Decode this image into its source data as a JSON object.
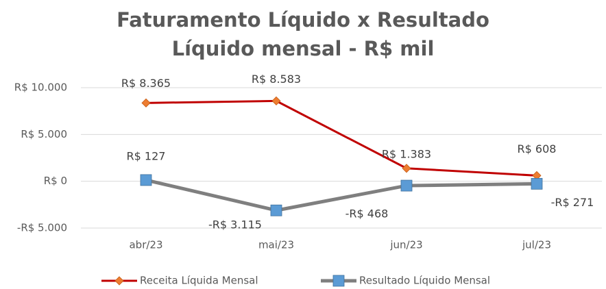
{
  "chart_data": {
    "type": "line",
    "title": "Faturamento Líquido x Resultado Líquido mensal - R$ mil",
    "categories": [
      "abr/23",
      "mai/23",
      "jun/23",
      "jul/23"
    ],
    "series": [
      {
        "name": "Receita Líquida Mensal",
        "color": "#c00000",
        "marker_color": "#ed7d31",
        "marker": "diamond",
        "values": [
          8365,
          8583,
          1383,
          608
        ],
        "value_labels": [
          "R$ 8.365",
          "R$ 8.583",
          "R$ 1.383",
          "R$ 608"
        ]
      },
      {
        "name": "Resultado Líquido Mensal",
        "color": "#7f7f7f",
        "marker_color": "#5b9bd5",
        "marker": "square",
        "values": [
          127,
          -3115,
          -468,
          -271
        ],
        "value_labels": [
          "R$ 127",
          "-R$ 3.115",
          "-R$ 468",
          "-R$ 271"
        ]
      }
    ],
    "ylim": [
      -5000,
      10000
    ],
    "yticks": [
      {
        "value": -5000,
        "label": "-R$ 5.000"
      },
      {
        "value": 0,
        "label": "R$ 0"
      },
      {
        "value": 5000,
        "label": "R$ 5.000"
      },
      {
        "value": 10000,
        "label": "R$ 10.000"
      }
    ],
    "grid": true,
    "legend": "bottom"
  }
}
